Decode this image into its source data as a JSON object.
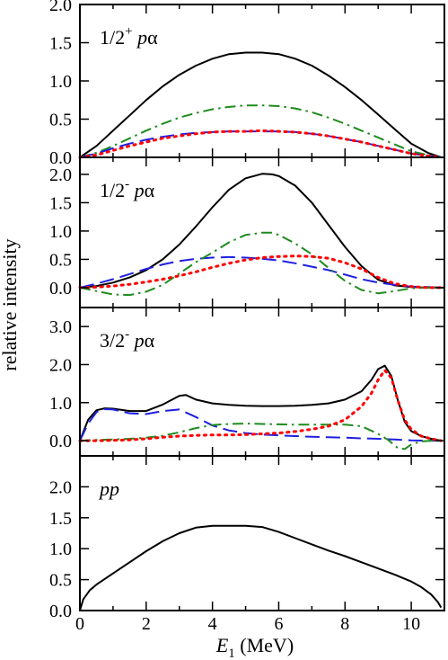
{
  "chart_data": {
    "type": "line",
    "ylabel": "relative intensity",
    "xlabel": {
      "symbol": "E",
      "subscript": "1",
      "unit": " (MeV)"
    },
    "xlim": [
      0,
      11
    ],
    "xticks": [
      "0",
      "2",
      "4",
      "6",
      "8",
      "10"
    ],
    "grid": false,
    "colors": {
      "solid": "#000000",
      "dashed": "#1f1fe0",
      "dotted": "#ff0000",
      "dashdot": "#1e8c1e"
    },
    "panels": [
      {
        "label": {
          "pre": "1/2",
          "sup": "+",
          "mid": " ",
          "ital": "p",
          "post": "α"
        },
        "ylim": [
          0,
          2.0
        ],
        "yticks": [
          "0.0",
          "0.5",
          "1.0",
          "1.5",
          "2.0"
        ],
        "series": [
          {
            "style": "solid",
            "x": [
              0,
              0.5,
              1,
              1.5,
              2,
              2.5,
              3,
              3.5,
              4,
              4.5,
              5,
              5.5,
              6,
              6.5,
              7,
              7.5,
              8,
              8.5,
              9,
              9.5,
              10,
              10.5,
              10.9
            ],
            "values": [
              0,
              0.15,
              0.35,
              0.55,
              0.75,
              0.93,
              1.08,
              1.2,
              1.29,
              1.35,
              1.37,
              1.37,
              1.35,
              1.29,
              1.2,
              1.07,
              0.92,
              0.75,
              0.56,
              0.37,
              0.18,
              0.06,
              0
            ]
          },
          {
            "style": "dashdot",
            "x": [
              0,
              0.5,
              1,
              1.5,
              2,
              2.5,
              3,
              3.5,
              4,
              4.5,
              5,
              5.5,
              6,
              6.5,
              7,
              7.5,
              8,
              8.5,
              9,
              9.5,
              10,
              10.5,
              10.9
            ],
            "values": [
              0,
              0.06,
              0.15,
              0.25,
              0.35,
              0.44,
              0.52,
              0.58,
              0.63,
              0.66,
              0.68,
              0.68,
              0.67,
              0.64,
              0.59,
              0.52,
              0.44,
              0.35,
              0.26,
              0.17,
              0.08,
              0.03,
              0
            ]
          },
          {
            "style": "dashed",
            "x": [
              0,
              0.5,
              1,
              1.5,
              2,
              2.5,
              3,
              3.5,
              4,
              4.5,
              5,
              5.5,
              6,
              6.5,
              7,
              7.5,
              8,
              8.5,
              9,
              9.5,
              10,
              10.5,
              10.9
            ],
            "values": [
              0,
              0.05,
              0.12,
              0.18,
              0.23,
              0.27,
              0.3,
              0.32,
              0.33,
              0.34,
              0.34,
              0.34,
              0.34,
              0.33,
              0.31,
              0.28,
              0.24,
              0.2,
              0.15,
              0.1,
              0.05,
              0.02,
              0
            ]
          },
          {
            "style": "dotted",
            "x": [
              0,
              0.5,
              1,
              1.5,
              2,
              2.5,
              3,
              3.5,
              4,
              4.5,
              5,
              5.5,
              6,
              6.5,
              7,
              7.5,
              8,
              8.5,
              9,
              9.5,
              10,
              10.5,
              10.9
            ],
            "values": [
              0,
              0.03,
              0.09,
              0.15,
              0.2,
              0.25,
              0.28,
              0.31,
              0.33,
              0.34,
              0.34,
              0.35,
              0.34,
              0.33,
              0.31,
              0.28,
              0.24,
              0.2,
              0.15,
              0.1,
              0.05,
              0.02,
              0
            ]
          }
        ]
      },
      {
        "label": {
          "pre": "1/2",
          "sup": "-",
          "mid": " ",
          "ital": "p",
          "post": "α"
        },
        "ylim": [
          -0.35,
          2.3
        ],
        "yticks": [
          "0.0",
          "0.5",
          "1.0",
          "1.5",
          "2.0"
        ],
        "series": [
          {
            "style": "solid",
            "x": [
              0,
              0.5,
              1,
              1.5,
              2,
              2.5,
              3,
              3.5,
              4,
              4.5,
              5,
              5.5,
              5.8,
              6,
              6.5,
              7,
              7.5,
              8,
              8.5,
              9,
              9.5,
              10,
              10.5,
              11
            ],
            "values": [
              0,
              0.03,
              0.09,
              0.18,
              0.31,
              0.5,
              0.76,
              1.08,
              1.42,
              1.73,
              1.93,
              2.01,
              2.0,
              1.97,
              1.8,
              1.5,
              1.11,
              0.72,
              0.38,
              0.14,
              0.04,
              0.01,
              0,
              0
            ]
          },
          {
            "style": "dashed",
            "x": [
              0,
              0.5,
              1,
              1.5,
              2,
              2.5,
              3,
              3.5,
              4,
              4.5,
              5,
              5.5,
              6,
              6.5,
              7,
              7.5,
              8,
              8.5,
              9,
              9.5,
              10,
              10.5,
              11
            ],
            "values": [
              0,
              0.07,
              0.15,
              0.24,
              0.33,
              0.41,
              0.47,
              0.51,
              0.53,
              0.54,
              0.53,
              0.51,
              0.48,
              0.43,
              0.37,
              0.31,
              0.23,
              0.15,
              0.09,
              0.05,
              0.02,
              0.01,
              0
            ]
          },
          {
            "style": "dashdot",
            "x": [
              0,
              0.5,
              1,
              1.5,
              2,
              2.5,
              3,
              3.5,
              4,
              4.5,
              5,
              5.5,
              5.8,
              6,
              6.5,
              7,
              7.5,
              8,
              8.5,
              9,
              9.5,
              10,
              10.5,
              11
            ],
            "values": [
              0,
              -0.06,
              -0.12,
              -0.13,
              -0.07,
              0.05,
              0.25,
              0.45,
              0.62,
              0.8,
              0.93,
              0.97,
              0.97,
              0.93,
              0.78,
              0.59,
              0.35,
              0.12,
              -0.04,
              -0.1,
              -0.06,
              -0.01,
              0,
              0
            ]
          },
          {
            "style": "dotted",
            "x": [
              0,
              0.5,
              1,
              1.5,
              2,
              2.5,
              3,
              3.5,
              4,
              4.5,
              5,
              5.5,
              6,
              6.5,
              7,
              7.5,
              8,
              8.5,
              9,
              9.5,
              10,
              10.5,
              11
            ],
            "values": [
              0,
              0.01,
              0.03,
              0.06,
              0.1,
              0.15,
              0.21,
              0.28,
              0.36,
              0.43,
              0.49,
              0.53,
              0.55,
              0.56,
              0.55,
              0.52,
              0.44,
              0.33,
              0.18,
              0.07,
              0.02,
              0,
              0
            ]
          }
        ]
      },
      {
        "label": {
          "pre": "3/2",
          "sup": "-",
          "mid": " ",
          "ital": "p",
          "post": "α"
        },
        "ylim": [
          -0.4,
          3.5
        ],
        "yticks": [
          "0.0",
          "1.0",
          "2.0",
          "3.0"
        ],
        "series": [
          {
            "style": "solid",
            "x": [
              0,
              0.25,
              0.5,
              0.75,
              1,
              1.5,
              2,
              2.5,
              3,
              3.2,
              3.5,
              4,
              4.5,
              5,
              5.5,
              6,
              6.5,
              7,
              7.5,
              8,
              8.5,
              8.8,
              9,
              9.2,
              9.4,
              9.6,
              9.8,
              10,
              10.3,
              10.6,
              10.9
            ],
            "values": [
              0,
              0.55,
              0.8,
              0.85,
              0.84,
              0.78,
              0.78,
              0.95,
              1.18,
              1.2,
              1.08,
              0.98,
              0.94,
              0.92,
              0.91,
              0.91,
              0.92,
              0.94,
              0.98,
              1.08,
              1.3,
              1.6,
              1.88,
              1.97,
              1.7,
              1.05,
              0.5,
              0.25,
              0.12,
              0.05,
              0
            ]
          },
          {
            "style": "dashed",
            "x": [
              0,
              0.25,
              0.5,
              0.75,
              1,
              1.5,
              2,
              2.5,
              3,
              3.5,
              4,
              4.5,
              5,
              5.5,
              6,
              6.5,
              7,
              7.5,
              8,
              8.5,
              9,
              9.5,
              10,
              10.5,
              10.9
            ],
            "values": [
              0,
              0.45,
              0.75,
              0.83,
              0.82,
              0.72,
              0.7,
              0.78,
              0.82,
              0.62,
              0.4,
              0.27,
              0.2,
              0.16,
              0.14,
              0.12,
              0.1,
              0.09,
              0.08,
              0.06,
              0.05,
              0.03,
              0.01,
              0,
              0
            ]
          },
          {
            "style": "dashdot",
            "x": [
              0,
              0.5,
              1,
              1.5,
              2,
              2.5,
              3,
              3.5,
              4,
              4.5,
              5,
              5.5,
              6,
              6.5,
              7,
              7.5,
              8,
              8.5,
              9,
              9.3,
              9.6,
              9.8,
              10,
              10.3,
              10.6,
              10.9
            ],
            "values": [
              0,
              0.02,
              0.03,
              0.05,
              0.08,
              0.13,
              0.22,
              0.33,
              0.41,
              0.44,
              0.45,
              0.44,
              0.43,
              0.42,
              0.42,
              0.42,
              0.42,
              0.38,
              0.18,
              0.02,
              -0.2,
              -0.22,
              -0.1,
              -0.02,
              0,
              0
            ]
          },
          {
            "style": "dotted",
            "x": [
              0,
              0.5,
              1,
              1.5,
              2,
              2.5,
              3,
              3.5,
              4,
              4.5,
              5,
              5.5,
              6,
              6.5,
              7,
              7.5,
              8,
              8.5,
              8.8,
              9,
              9.2,
              9.4,
              9.6,
              9.8,
              10,
              10.3,
              10.6,
              10.9
            ],
            "values": [
              0,
              0,
              0.01,
              0.02,
              0.05,
              0.09,
              0.12,
              0.14,
              0.15,
              0.15,
              0.16,
              0.18,
              0.2,
              0.24,
              0.3,
              0.38,
              0.55,
              0.9,
              1.25,
              1.6,
              1.85,
              1.65,
              1.05,
              0.55,
              0.3,
              0.12,
              0.05,
              0
            ]
          }
        ]
      },
      {
        "label": {
          "pre": "",
          "sup": "",
          "mid": "",
          "ital": "pp",
          "post": ""
        },
        "ylim": [
          0,
          2.5
        ],
        "yticks": [
          "0.0",
          "0.5",
          "1.0",
          "1.5",
          "2.0"
        ],
        "series": [
          {
            "style": "solid",
            "x": [
              0,
              0.1,
              0.3,
              0.5,
              1,
              1.5,
              2,
              2.5,
              3,
              3.5,
              4,
              4.5,
              5,
              5.5,
              6,
              6.5,
              7,
              7.5,
              8,
              8.5,
              9,
              9.5,
              10,
              10.3,
              10.6,
              10.8,
              10.9
            ],
            "values": [
              0,
              0.18,
              0.33,
              0.42,
              0.6,
              0.78,
              0.96,
              1.12,
              1.25,
              1.34,
              1.37,
              1.37,
              1.37,
              1.35,
              1.27,
              1.17,
              1.07,
              0.97,
              0.88,
              0.78,
              0.68,
              0.58,
              0.47,
              0.38,
              0.26,
              0.14,
              0.05
            ]
          }
        ]
      }
    ]
  }
}
